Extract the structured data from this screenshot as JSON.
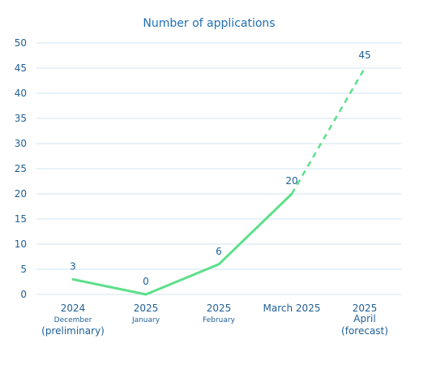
{
  "chart_data": {
    "type": "line",
    "title": "Number of applications",
    "xlabel": "",
    "ylabel": "",
    "ylim": [
      0,
      50
    ],
    "yticks": [
      "0",
      "5",
      "10",
      "15",
      "20",
      "25",
      "30",
      "35",
      "40",
      "45",
      "50"
    ],
    "grid": true,
    "categories": [
      {
        "line1": "2024",
        "line2": "December",
        "line3": "(preliminary)"
      },
      {
        "line1": "2025",
        "line2": "January",
        "line3": ""
      },
      {
        "line1": "2025",
        "line2": "February",
        "line3": ""
      },
      {
        "line1": "March 2025",
        "line2": "",
        "line3": ""
      },
      {
        "line1": "2025",
        "line2": "April",
        "line3": "(forecast)"
      }
    ],
    "values": [
      3,
      0,
      6,
      20,
      45
    ],
    "data_labels": [
      "3",
      "0",
      "6",
      "20",
      "45"
    ],
    "forecast_start_index": 3,
    "colors": {
      "line": "#5ddf8a",
      "text": "#1f5f96",
      "title": "#1f6fb5",
      "grid": "#cfe6f2"
    }
  }
}
